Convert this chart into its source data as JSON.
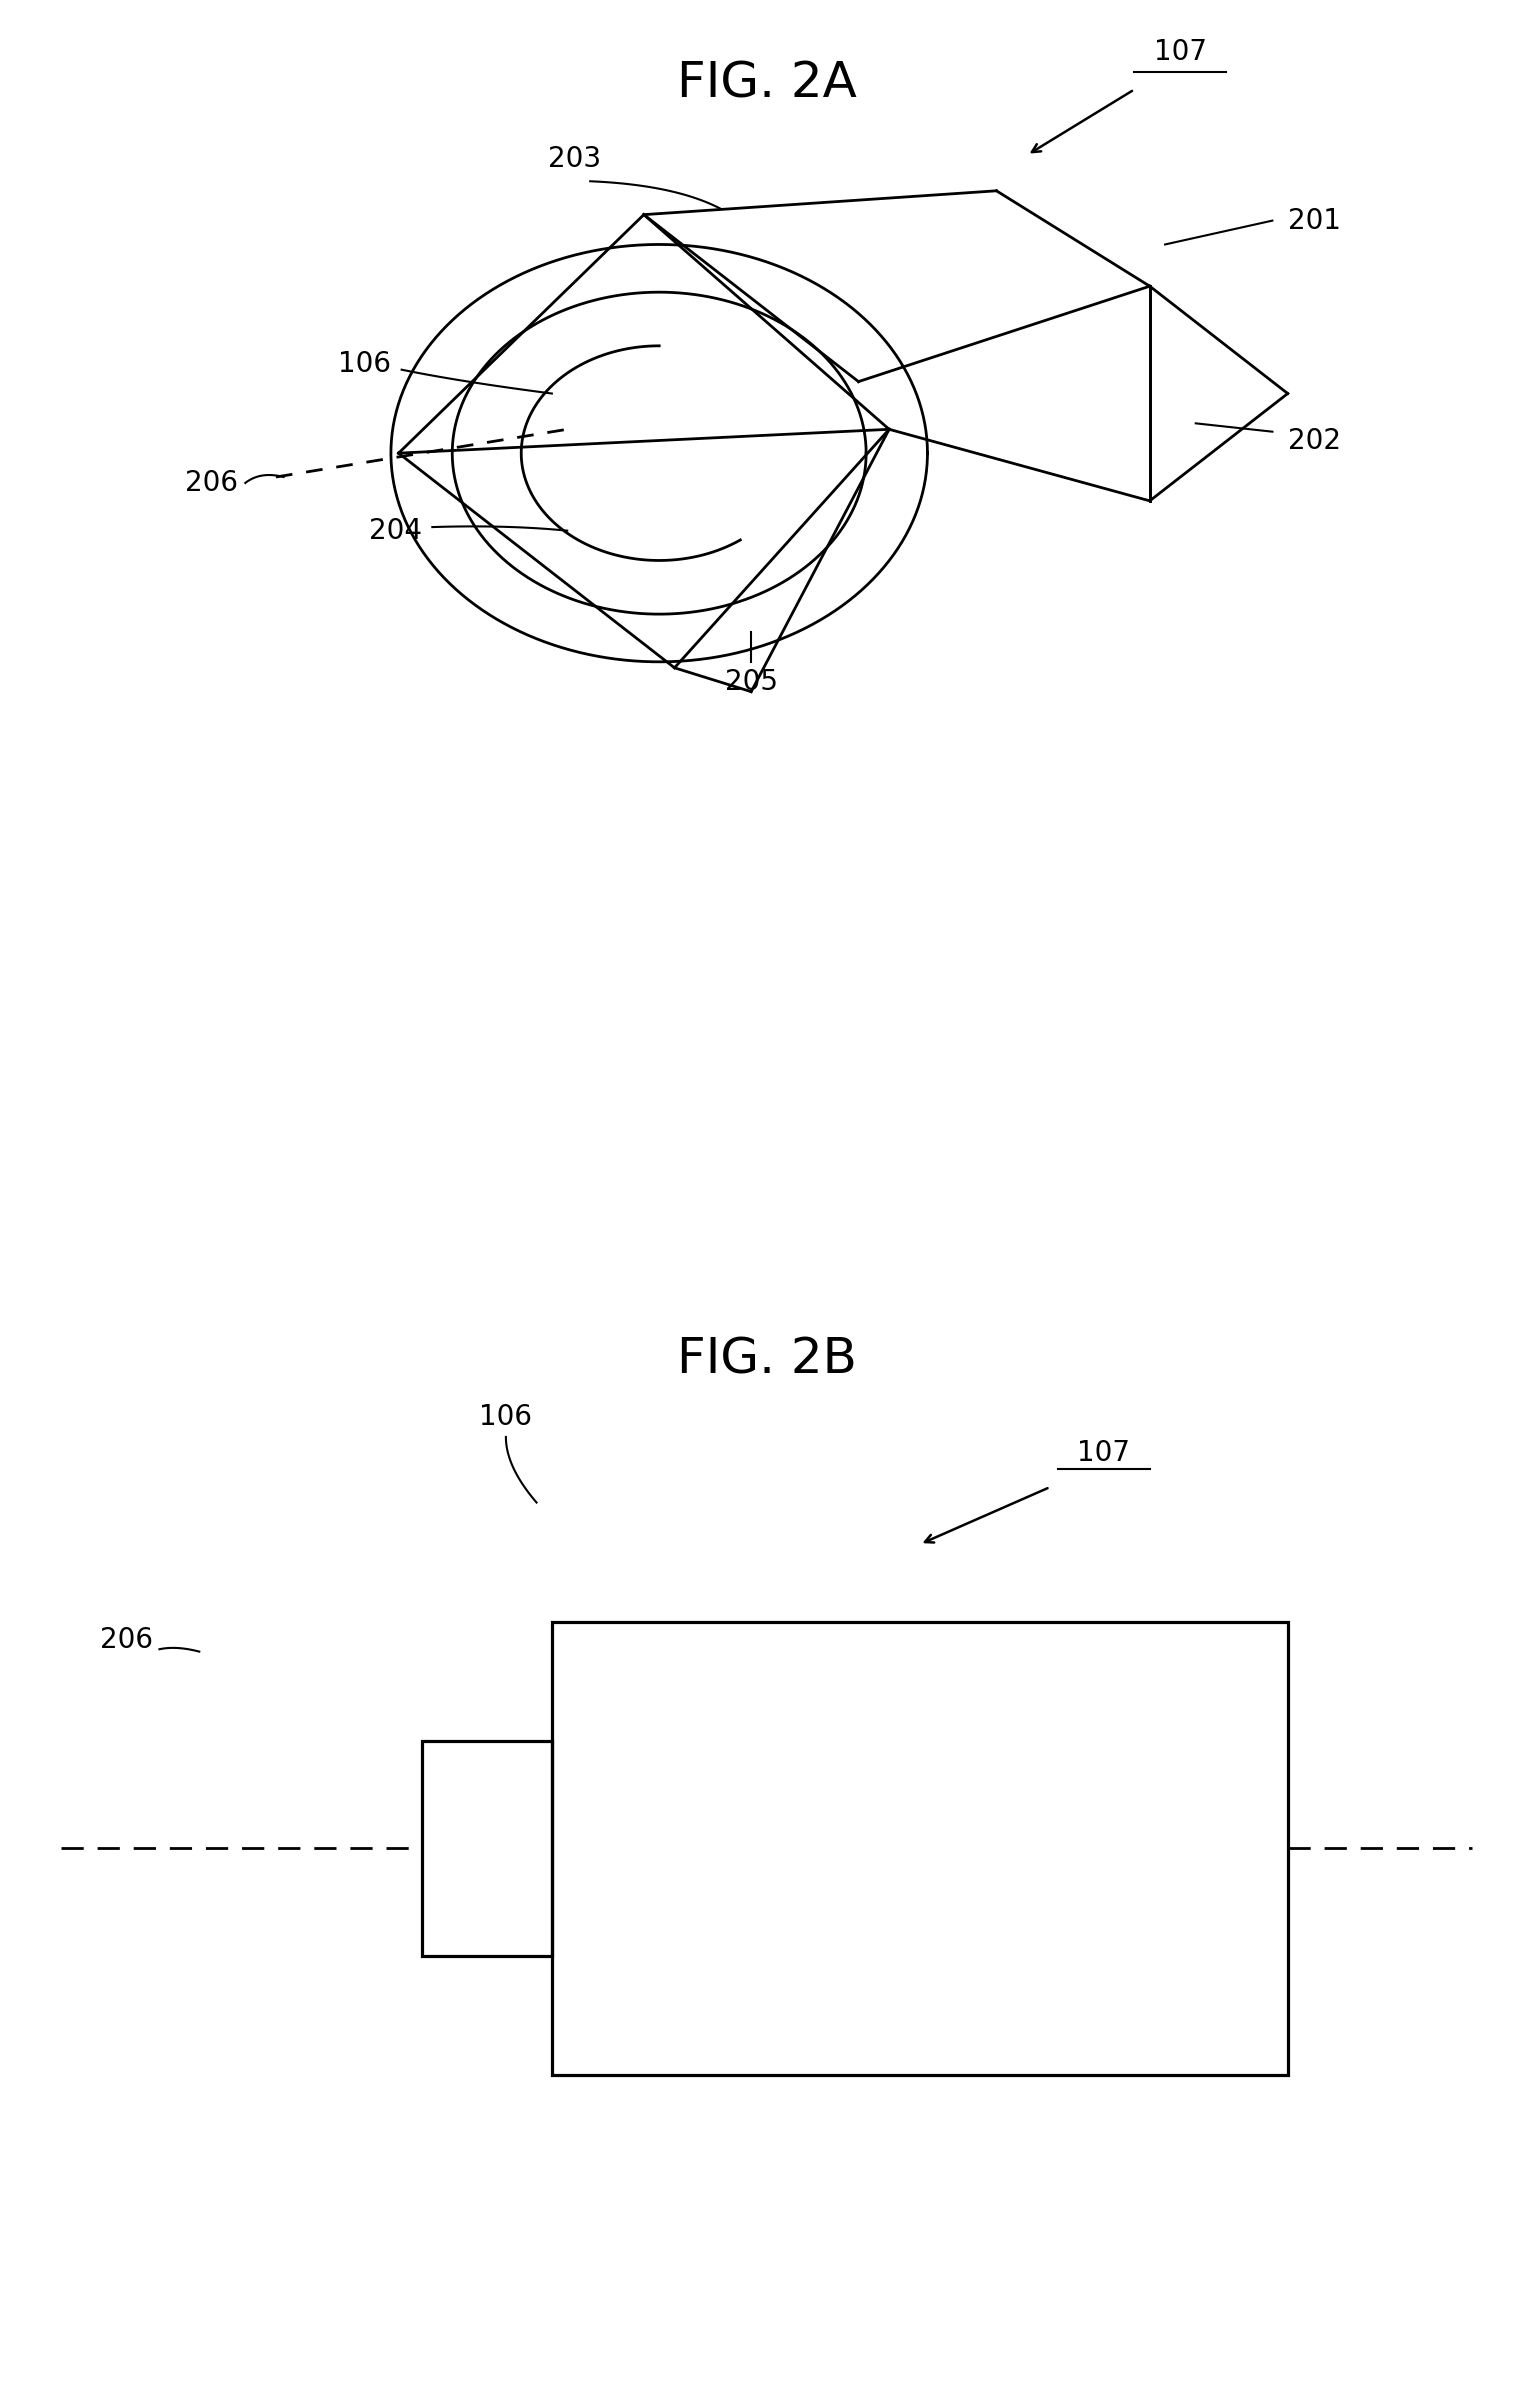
{
  "fig_title_2a": "FIG. 2A",
  "fig_title_2b": "FIG. 2B",
  "bg_color": "#ffffff",
  "line_color": "#000000",
  "line_width": 2.0,
  "label_fontsize": 20,
  "title_fontsize": 36
}
